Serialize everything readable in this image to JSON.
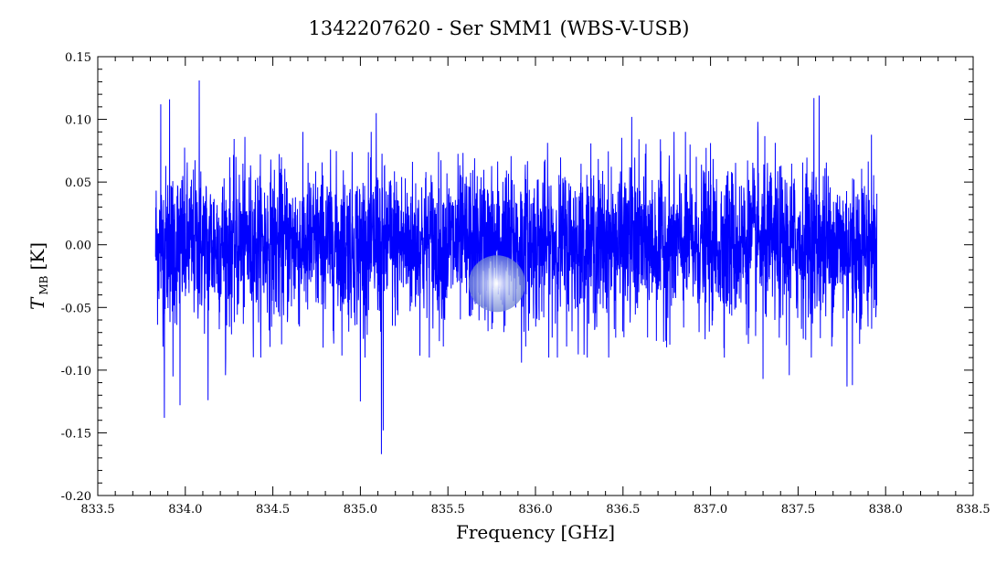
{
  "chart_data": {
    "type": "line",
    "title": "1342207620 - Ser SMM1 (WBS-V-USB)",
    "xlabel": "Frequency [GHz]",
    "ylabel": {
      "symbol": "T",
      "subscript": "MB",
      "unit": "[K]"
    },
    "xlim": [
      833.5,
      838.5
    ],
    "ylim": [
      -0.2,
      0.15
    ],
    "xticks": [
      833.5,
      834.0,
      834.5,
      835.0,
      835.5,
      836.0,
      836.5,
      837.0,
      837.5,
      838.0,
      838.5
    ],
    "xtick_labels": [
      "833.5",
      "834.0",
      "834.5",
      "835.0",
      "835.5",
      "836.0",
      "836.5",
      "837.0",
      "837.5",
      "838.0",
      "838.5"
    ],
    "yticks": [
      -0.2,
      -0.15,
      -0.1,
      -0.05,
      0.0,
      0.05,
      0.1,
      0.15
    ],
    "ytick_labels": [
      "-0.20",
      "-0.15",
      "-0.10",
      "-0.05",
      "0.00",
      "0.05",
      "0.10",
      "0.15"
    ],
    "grid": false,
    "series": [
      {
        "color": "#0000ff",
        "x_start": 833.83,
        "x_end": 837.95,
        "noise_rms": 0.031,
        "peaks": [
          {
            "x": 833.86,
            "y": 0.112
          },
          {
            "x": 833.88,
            "y": -0.138
          },
          {
            "x": 833.91,
            "y": 0.116
          },
          {
            "x": 833.93,
            "y": -0.105
          },
          {
            "x": 833.97,
            "y": -0.128
          },
          {
            "x": 834.08,
            "y": 0.131
          },
          {
            "x": 834.13,
            "y": -0.124
          },
          {
            "x": 834.23,
            "y": -0.104
          },
          {
            "x": 835.0,
            "y": -0.125
          },
          {
            "x": 835.09,
            "y": 0.105
          },
          {
            "x": 835.12,
            "y": -0.167
          },
          {
            "x": 835.13,
            "y": -0.148
          },
          {
            "x": 835.92,
            "y": -0.094
          },
          {
            "x": 836.55,
            "y": 0.102
          },
          {
            "x": 837.27,
            "y": 0.098
          },
          {
            "x": 837.3,
            "y": -0.107
          },
          {
            "x": 837.45,
            "y": -0.104
          },
          {
            "x": 837.59,
            "y": 0.117
          },
          {
            "x": 837.62,
            "y": 0.119
          },
          {
            "x": 837.78,
            "y": -0.113
          },
          {
            "x": 837.81,
            "y": -0.112
          }
        ]
      }
    ],
    "annotations": [
      {
        "type": "highlight-circle",
        "x": 835.78,
        "y": -0.031,
        "color": "#6e82d2"
      }
    ]
  }
}
